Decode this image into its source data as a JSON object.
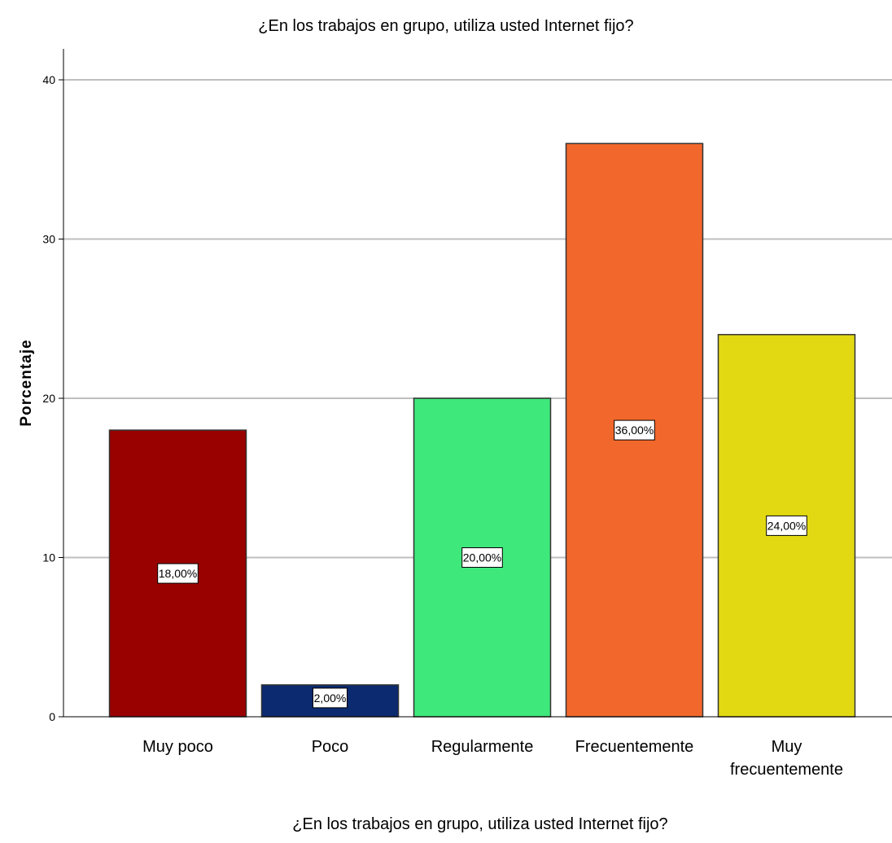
{
  "chart_data": {
    "type": "bar",
    "title": "¿En los trabajos en grupo, utiliza usted Internet fijo?",
    "xlabel": "¿En los trabajos en grupo, utiliza usted Internet fijo?",
    "ylabel": "Porcentaje",
    "categories": [
      "Muy poco",
      "Poco",
      "Regularmente",
      "Frecuentemente",
      "Muy frecuentemente"
    ],
    "category_lines": [
      [
        "Muy poco"
      ],
      [
        "Poco"
      ],
      [
        "Regularmente"
      ],
      [
        "Frecuentemente"
      ],
      [
        "Muy",
        "frecuentemente"
      ]
    ],
    "values": [
      18,
      2,
      20,
      36,
      24
    ],
    "data_labels": [
      "18,00%",
      "2,00%",
      "20,00%",
      "36,00%",
      "24,00%"
    ],
    "colors": [
      "#990000",
      "#0b2a6f",
      "#3fe87b",
      "#f2672c",
      "#e3d912"
    ],
    "ylim": [
      0,
      42
    ],
    "yticks": [
      0,
      10,
      20,
      30,
      40
    ],
    "grid": true,
    "legend": "none"
  }
}
